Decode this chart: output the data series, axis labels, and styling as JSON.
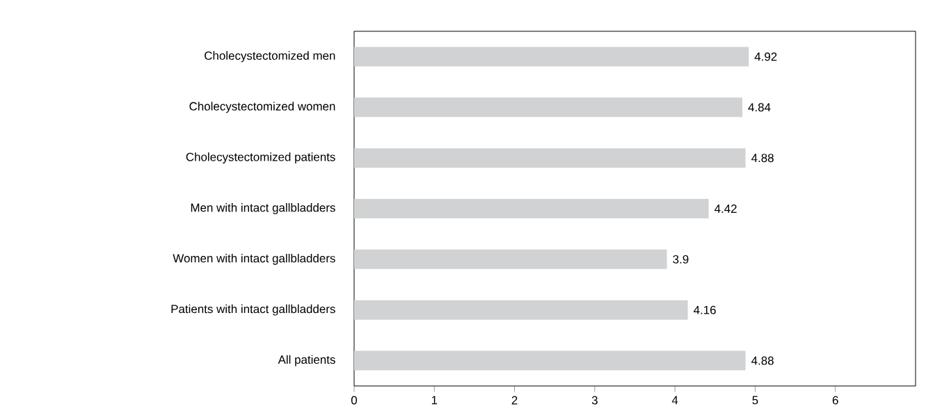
{
  "chart_data": {
    "type": "bar",
    "orientation": "horizontal",
    "categories": [
      "Cholecystectomized men",
      "Cholecystectomized women",
      "Cholecystectomized patients",
      "Men with intact gallbladders",
      "Women with intact gallbladders",
      "Patients with intact gallbladders",
      "All patients"
    ],
    "values": [
      4.92,
      4.84,
      4.88,
      4.42,
      3.9,
      4.16,
      4.88
    ],
    "color": "#d1d2d4",
    "data_labels": true,
    "grid": false,
    "xlim": [
      0,
      7
    ],
    "xticks": [
      0,
      1,
      2,
      3,
      4,
      5,
      6
    ]
  }
}
